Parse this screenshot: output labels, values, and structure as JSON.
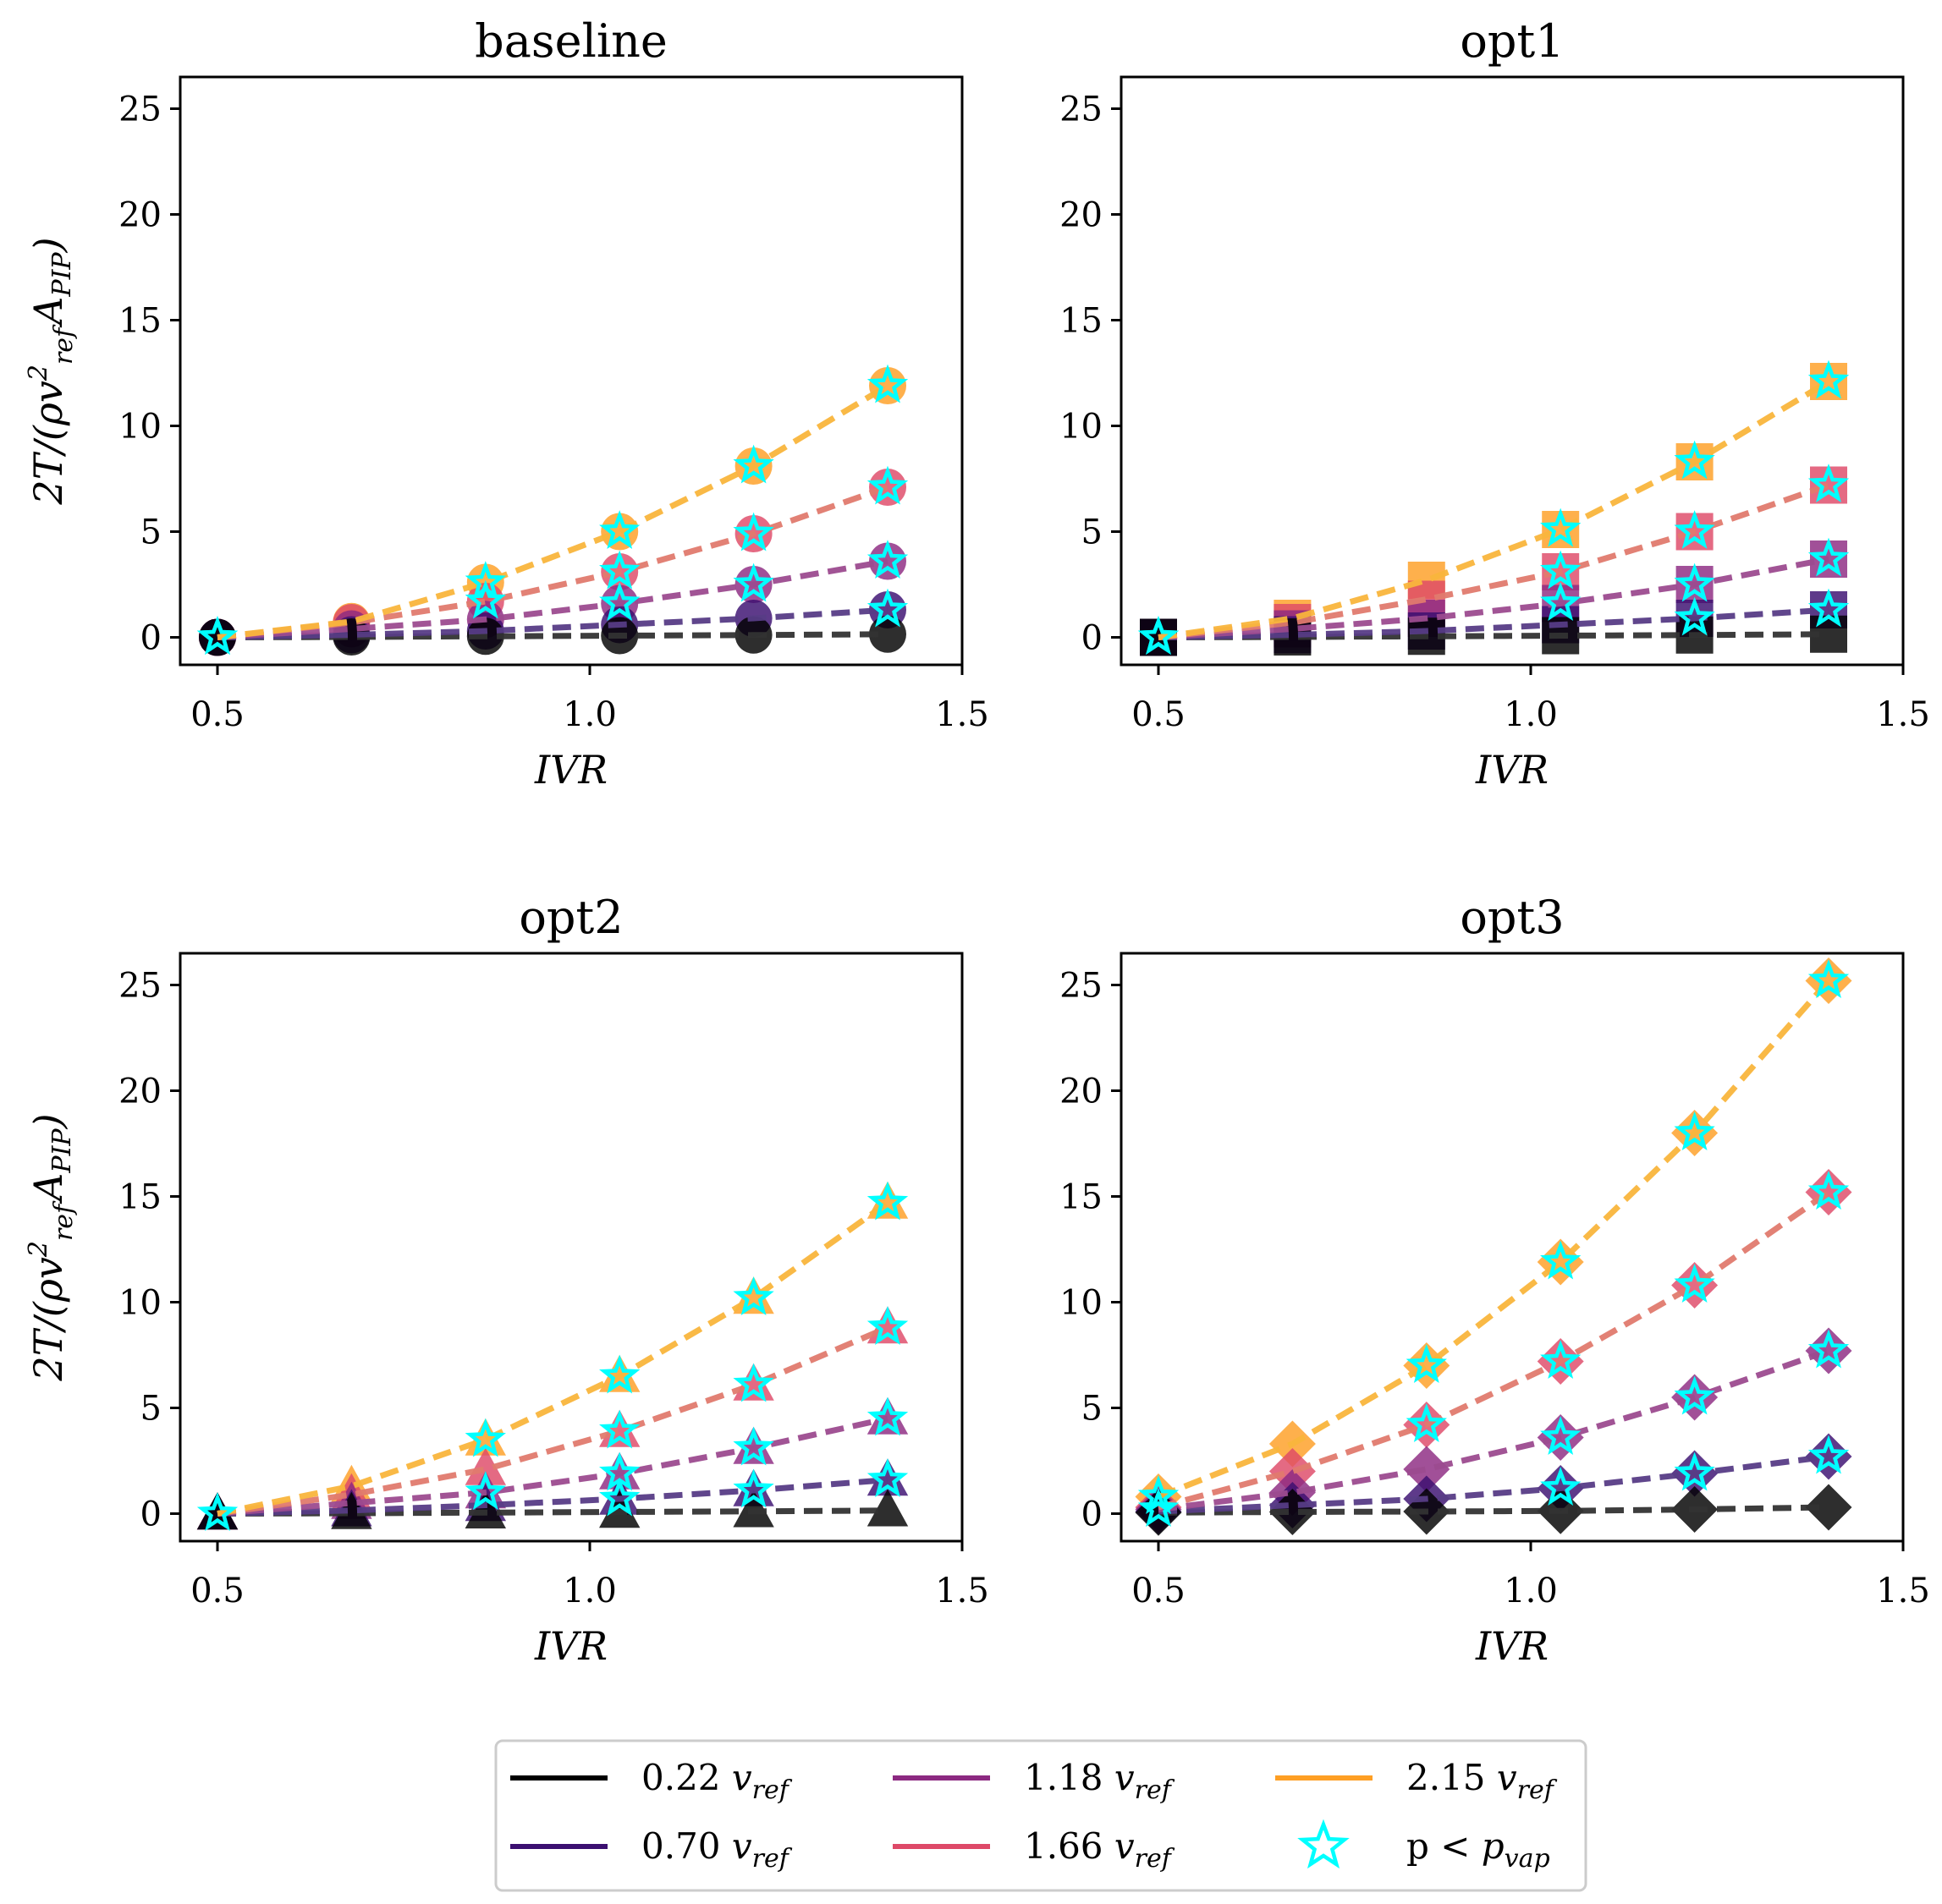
{
  "chart_data": [
    {
      "type": "line",
      "title": "baseline",
      "marker": "circle",
      "xlabel": "IVR",
      "ylabel": "2T/(ρv²_ref A_PIP)",
      "xlim": [
        0.45,
        1.5
      ],
      "ylim": [
        -1.3,
        26.5
      ],
      "xticks": [
        "0.5",
        "1.0",
        "1.5"
      ],
      "yticks": [
        "0",
        "5",
        "10",
        "15",
        "20",
        "25"
      ],
      "x": [
        0.5,
        0.68,
        0.86,
        1.04,
        1.22,
        1.4
      ],
      "series": [
        {
          "name": "0.22 v_ref",
          "values": [
            0,
            0.02,
            0.05,
            0.08,
            0.11,
            0.15
          ]
        },
        {
          "name": "0.70 v_ref",
          "values": [
            0,
            0.12,
            0.3,
            0.6,
            0.9,
            1.3
          ]
        },
        {
          "name": "1.18 v_ref",
          "values": [
            0,
            0.4,
            0.85,
            1.6,
            2.5,
            3.6
          ]
        },
        {
          "name": "1.66 v_ref",
          "values": [
            0,
            0.7,
            1.7,
            3.1,
            4.9,
            7.1
          ]
        },
        {
          "name": "2.15 v_ref",
          "values": [
            0,
            0.75,
            2.6,
            5.0,
            8.1,
            11.9
          ]
        }
      ],
      "cavitation": [
        {
          "series": "0.70 v_ref",
          "x": [
            0.5,
            1.4
          ]
        },
        {
          "series": "1.18 v_ref",
          "x": [
            1.04,
            1.22,
            1.4
          ]
        },
        {
          "series": "1.66 v_ref",
          "x": [
            0.86,
            1.04,
            1.22,
            1.4
          ]
        },
        {
          "series": "2.15 v_ref",
          "x": [
            0.5,
            0.86,
            1.04,
            1.22,
            1.4
          ]
        }
      ]
    },
    {
      "type": "line",
      "title": "opt1",
      "marker": "square",
      "xlabel": "IVR",
      "ylabel": "",
      "xlim": [
        0.45,
        1.5
      ],
      "ylim": [
        -1.3,
        26.5
      ],
      "xticks": [
        "0.5",
        "1.0",
        "1.5"
      ],
      "yticks": [
        "0",
        "5",
        "10",
        "15",
        "20",
        "25"
      ],
      "x": [
        0.5,
        0.68,
        0.86,
        1.04,
        1.22,
        1.4
      ],
      "series": [
        {
          "name": "0.22 v_ref",
          "values": [
            0,
            0.02,
            0.05,
            0.08,
            0.11,
            0.15
          ]
        },
        {
          "name": "0.70 v_ref",
          "values": [
            0,
            0.12,
            0.3,
            0.6,
            0.9,
            1.3
          ]
        },
        {
          "name": "1.18 v_ref",
          "values": [
            0,
            0.4,
            0.9,
            1.6,
            2.5,
            3.7
          ]
        },
        {
          "name": "1.66 v_ref",
          "values": [
            0,
            0.7,
            1.8,
            3.1,
            5.0,
            7.2
          ]
        },
        {
          "name": "2.15 v_ref",
          "values": [
            0,
            0.9,
            2.7,
            5.1,
            8.3,
            12.1
          ]
        }
      ],
      "cavitation": [
        {
          "series": "0.70 v_ref",
          "x": [
            0.5,
            1.22,
            1.4
          ]
        },
        {
          "series": "1.18 v_ref",
          "x": [
            1.04,
            1.22,
            1.4
          ]
        },
        {
          "series": "1.66 v_ref",
          "x": [
            1.04,
            1.22,
            1.4
          ]
        },
        {
          "series": "2.15 v_ref",
          "x": [
            0.5,
            1.04,
            1.22,
            1.4
          ]
        }
      ]
    },
    {
      "type": "line",
      "title": "opt2",
      "marker": "triangle",
      "xlabel": "IVR",
      "ylabel": "2T/(ρv²_ref A_PIP)",
      "xlim": [
        0.45,
        1.5
      ],
      "ylim": [
        -1.3,
        26.5
      ],
      "xticks": [
        "0.5",
        "1.0",
        "1.5"
      ],
      "yticks": [
        "0",
        "5",
        "10",
        "15",
        "20",
        "25"
      ],
      "x": [
        0.5,
        0.68,
        0.86,
        1.04,
        1.22,
        1.4
      ],
      "series": [
        {
          "name": "0.22 v_ref",
          "values": [
            0,
            0.02,
            0.05,
            0.08,
            0.11,
            0.15
          ]
        },
        {
          "name": "0.70 v_ref",
          "values": [
            0,
            0.15,
            0.4,
            0.7,
            1.1,
            1.6
          ]
        },
        {
          "name": "1.18 v_ref",
          "values": [
            0,
            0.5,
            1.0,
            1.9,
            3.1,
            4.5
          ]
        },
        {
          "name": "1.66 v_ref",
          "values": [
            0,
            0.9,
            2.1,
            3.9,
            6.1,
            8.8
          ]
        },
        {
          "name": "2.15 v_ref",
          "values": [
            0,
            1.3,
            3.5,
            6.5,
            10.2,
            14.7
          ]
        }
      ],
      "cavitation": [
        {
          "series": "0.70 v_ref",
          "x": [
            0.5,
            1.04,
            1.22,
            1.4
          ]
        },
        {
          "series": "1.18 v_ref",
          "x": [
            0.86,
            1.04,
            1.22,
            1.4
          ]
        },
        {
          "series": "1.66 v_ref",
          "x": [
            1.04,
            1.22,
            1.4
          ]
        },
        {
          "series": "2.15 v_ref",
          "x": [
            0.86,
            1.04,
            1.22,
            1.4
          ]
        }
      ]
    },
    {
      "type": "line",
      "title": "opt3",
      "marker": "diamond",
      "xlabel": "IVR",
      "ylabel": "",
      "xlim": [
        0.45,
        1.5
      ],
      "ylim": [
        -1.3,
        26.5
      ],
      "xticks": [
        "0.5",
        "1.0",
        "1.5"
      ],
      "yticks": [
        "0",
        "5",
        "10",
        "15",
        "20",
        "25"
      ],
      "x": [
        0.5,
        0.68,
        0.86,
        1.04,
        1.22,
        1.4
      ],
      "series": [
        {
          "name": "0.22 v_ref",
          "values": [
            0.05,
            0.08,
            0.1,
            0.13,
            0.2,
            0.3
          ]
        },
        {
          "name": "0.70 v_ref",
          "values": [
            0.1,
            0.4,
            0.7,
            1.2,
            1.9,
            2.7
          ]
        },
        {
          "name": "1.18 v_ref",
          "values": [
            0.2,
            1.0,
            2.1,
            3.6,
            5.5,
            7.7
          ]
        },
        {
          "name": "1.66 v_ref",
          "values": [
            0.3,
            2.0,
            4.2,
            7.2,
            10.8,
            15.2
          ]
        },
        {
          "name": "2.15 v_ref",
          "values": [
            0.8,
            3.3,
            7.0,
            11.9,
            18.0,
            25.2
          ]
        }
      ],
      "cavitation": [
        {
          "series": "0.70 v_ref",
          "x": [
            1.04,
            1.22,
            1.4
          ]
        },
        {
          "series": "1.18 v_ref",
          "x": [
            0.5,
            1.04,
            1.22,
            1.4
          ]
        },
        {
          "series": "1.66 v_ref",
          "x": [
            0.86,
            1.04,
            1.22,
            1.4
          ]
        },
        {
          "series": "2.15 v_ref",
          "x": [
            0.5,
            0.86,
            1.04,
            1.22,
            1.4
          ]
        }
      ]
    }
  ],
  "legend": {
    "placement": "bottom-center",
    "entries": [
      {
        "kind": "line",
        "color": "#000000",
        "label_main": "0.22",
        "label_var": "v",
        "label_sub": "ref"
      },
      {
        "kind": "line",
        "color": "#3b0f70",
        "label_main": "0.70",
        "label_var": "v",
        "label_sub": "ref"
      },
      {
        "kind": "line",
        "color": "#8c2981",
        "label_main": "1.18",
        "label_var": "v",
        "label_sub": "ref"
      },
      {
        "kind": "line",
        "color": "#de4968",
        "label_main": "1.66",
        "label_var": "v",
        "label_sub": "ref"
      },
      {
        "kind": "line",
        "color": "#fe9f24",
        "label_main": "2.15",
        "label_var": "v",
        "label_sub": "ref"
      },
      {
        "kind": "star",
        "color": "#00ffff",
        "label_main": "p <",
        "label_var": "p",
        "label_sub": "vap"
      }
    ]
  },
  "colors": {
    "series": [
      "#000000",
      "#3b0f70",
      "#8c2981",
      "#de4968",
      "#fe9f24"
    ],
    "dashed": [
      "#333333",
      "#573c86",
      "#9c4b8f",
      "#e07a6e",
      "#f9b53c"
    ],
    "star": "#00ffff"
  },
  "ylabel_parts": {
    "prefix": "2T/(ρv",
    "sup": "2",
    "sub1": "ref",
    "mid": "A",
    "sub2": "PIP",
    "suffix": ")"
  }
}
